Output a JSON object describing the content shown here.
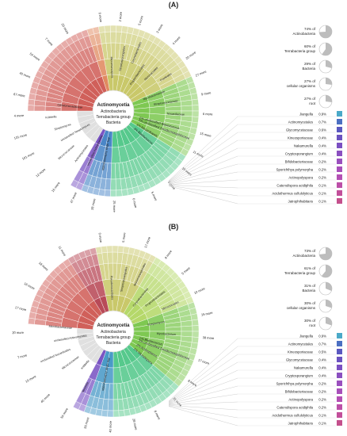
{
  "panels": [
    {
      "label": "(A)",
      "center": {
        "title": "Actinomycetia",
        "lines": [
          "Actinobacteria",
          "Terrabacteria group",
          "Bacteria"
        ]
      },
      "ring_labels": [
        "0 more",
        "2 more",
        "5 more",
        "3 more",
        "4 more",
        "20 more",
        "27 more",
        "9 more",
        "6 more",
        "15 more",
        "11 more",
        "10 more",
        "3 more",
        "5 more",
        "6 more",
        "25 more",
        "28 more",
        "47 more",
        "16 more",
        "12 more",
        "101 more",
        "131 more",
        "4 more",
        "67 more",
        "40 more",
        "54 more",
        "7 more",
        "20 more"
      ],
      "inner_labels": [
        "Micromonospora",
        "Streptosporangiales",
        "Corynebacteriales",
        "Propionibacteriales",
        "Micrococcales",
        "Frankiales",
        "Mycobacteriaceae",
        "Streptomycetaceae",
        "Nocardiaceae",
        "unclassified Actinomycetia",
        "Actinomycetales",
        "Micrococcaceae",
        "unclassified Streptomyces",
        "Streptomyces",
        "Kribbella",
        "Cellulomonadaceae"
      ],
      "wedge_labels": [
        {
          "pct": "1%",
          "name": "unclassified Blastococcus"
        },
        {
          "pct": "1%",
          "name": "unclassified Geodermatophilaceae"
        },
        {
          "pct": "1%",
          "name": "Nocardiopsis"
        },
        {
          "pct": "3%",
          "name": "Blastococcus"
        },
        {
          "pct": "6%",
          "name": "other Actinomycetia"
        }
      ],
      "ancestry": [
        {
          "pct": "74% of",
          "name": "Actinobacteria",
          "fill": 0.74
        },
        {
          "pct": "60% of",
          "name": "Terrabacteria group",
          "fill": 0.6
        },
        {
          "pct": "29% of",
          "name": "Bacteria",
          "fill": 0.29
        },
        {
          "pct": "27% of",
          "name": "cellular organisms",
          "fill": 0.27
        },
        {
          "pct": "27% of",
          "name": "root",
          "fill": 0.27
        }
      ],
      "legend": [
        {
          "name": "Jiangella",
          "pct": "0.9%",
          "color": "#4aa9c8"
        },
        {
          "name": "Actinomycetales",
          "pct": "0.7%",
          "color": "#4b6fc2"
        },
        {
          "name": "Glycomycetaceae",
          "pct": "0.6%",
          "color": "#5a58c0"
        },
        {
          "name": "Kineosporiaceae",
          "pct": "0.4%",
          "color": "#6b52c0"
        },
        {
          "name": "Nakamurella",
          "pct": "0.4%",
          "color": "#7b4fc2"
        },
        {
          "name": "Cryptosporangium",
          "pct": "0.4%",
          "color": "#8a4fc0"
        },
        {
          "name": "Bifidobacteriaceae",
          "pct": "0.2%",
          "color": "#9a4fbe"
        },
        {
          "name": "Sporichthya polymorpha",
          "pct": "0.2%",
          "color": "#a84fba"
        },
        {
          "name": "Actinopolyspora",
          "pct": "0.2%",
          "color": "#b44fb4"
        },
        {
          "name": "Catenulispora acidiphila",
          "pct": "0.1%",
          "color": "#bc4fa8"
        },
        {
          "name": "Acidothermus cellulolyticus",
          "pct": "0.1%",
          "color": "#c24f9a"
        },
        {
          "name": "Jatrophihabitans",
          "pct": "0.1%",
          "color": "#c44f8c"
        }
      ],
      "sectors": [
        {
          "from": 260,
          "to": 336,
          "color": "#c9c86a"
        },
        {
          "from": 336,
          "to": 392,
          "color": "#7ec852"
        },
        {
          "from": 392,
          "to": 452,
          "color": "#56c98c"
        },
        {
          "from": 452,
          "to": 472,
          "color": "#4a86c7"
        },
        {
          "from": 472,
          "to": 480,
          "color": "#7a55c3"
        },
        {
          "from": 480,
          "to": 540,
          "color": "#e0e0e0"
        },
        {
          "from": 540,
          "to": 612,
          "color": "#d0605a"
        },
        {
          "from": 612,
          "to": 620,
          "color": "#e08a60"
        }
      ]
    },
    {
      "label": "(B)",
      "center": {
        "title": "Actinomycetia",
        "lines": [
          "Actinobacteria",
          "Terrabacteria group",
          "Bacteria"
        ]
      },
      "ring_labels": [
        "0 more",
        "5 more",
        "17 more",
        "8 more",
        "5 more",
        "10 more",
        "15 more",
        "38 more",
        "17 more",
        "8 more",
        "31 more",
        "8 more",
        "28 more",
        "40 more",
        "56 more",
        "54 more",
        "40 more",
        "19 more",
        "7 more",
        "20 more",
        "17 more",
        "16 more",
        "18 more",
        "11 more"
      ],
      "inner_labels": [
        "Pseudonocardiales",
        "Streptosporangiales",
        "Micromonosporales",
        "Corynebacteriales",
        "Propionibacteriales",
        "Micrococcales",
        "Streptomyces",
        "Mycobacterium",
        "Nocardia",
        "Kribbella",
        "Micrococcaceae",
        "unclassified Nocardioides",
        "unclassified Actinomycetia",
        "Microbacteriaceae"
      ],
      "wedge_labels": [
        {
          "pct": "1%",
          "name": "Blastococcus"
        },
        {
          "pct": "1%",
          "name": "unclassified Geodermatophilaceae"
        },
        {
          "pct": "2%",
          "name": "Actinoplanes"
        },
        {
          "pct": "1%",
          "name": "Microbispora"
        },
        {
          "pct": "8%",
          "name": "other Actinomycetia"
        }
      ],
      "ancestry": [
        {
          "pct": "73% of",
          "name": "Actinobacteria",
          "fill": 0.73
        },
        {
          "pct": "61% of",
          "name": "Terrabacteria group",
          "fill": 0.61
        },
        {
          "pct": "31% of",
          "name": "Bacteria",
          "fill": 0.31
        },
        {
          "pct": "30% of",
          "name": "cellular organisms",
          "fill": 0.3
        },
        {
          "pct": "30% of",
          "name": "root",
          "fill": 0.3
        }
      ],
      "legend": [
        {
          "name": "Jiangella",
          "pct": "0.9%",
          "color": "#4aa9c8"
        },
        {
          "name": "Actinomycetales",
          "pct": "0.7%",
          "color": "#4b6fc2"
        },
        {
          "name": "Kineosporiaceae",
          "pct": "0.5%",
          "color": "#5a58c0"
        },
        {
          "name": "Glycomycetaceae",
          "pct": "0.4%",
          "color": "#6b52c0"
        },
        {
          "name": "Nakamurella",
          "pct": "0.4%",
          "color": "#7b4fc2"
        },
        {
          "name": "Cryptosporangium",
          "pct": "0.4%",
          "color": "#8a4fc0"
        },
        {
          "name": "Sporichthya polymorpha",
          "pct": "0.2%",
          "color": "#9a4fbe"
        },
        {
          "name": "Bifidobacteriaceae",
          "pct": "0.2%",
          "color": "#a84fba"
        },
        {
          "name": "Actinopolyspora",
          "pct": "0.2%",
          "color": "#b44fb4"
        },
        {
          "name": "Catenulispora acidiphila",
          "pct": "0.2%",
          "color": "#bc4fa8"
        },
        {
          "name": "Acidothermus cellulolyticus",
          "pct": "0.1%",
          "color": "#c24f9a"
        },
        {
          "name": "Jatrophihabitans",
          "pct": "0.1%",
          "color": "#c44f8c"
        }
      ],
      "sectors": [
        {
          "from": 258,
          "to": 300,
          "color": "#c9c86a"
        },
        {
          "from": 300,
          "to": 340,
          "color": "#b5d86a"
        },
        {
          "from": 340,
          "to": 400,
          "color": "#7ec852"
        },
        {
          "from": 400,
          "to": 450,
          "color": "#56c98c"
        },
        {
          "from": 450,
          "to": 470,
          "color": "#4a9ac7"
        },
        {
          "from": 470,
          "to": 478,
          "color": "#7a55c3"
        },
        {
          "from": 478,
          "to": 545,
          "color": "#e0e0e0"
        },
        {
          "from": 545,
          "to": 598,
          "color": "#d0605a"
        },
        {
          "from": 598,
          "to": 618,
          "color": "#b84a58"
        }
      ]
    }
  ]
}
